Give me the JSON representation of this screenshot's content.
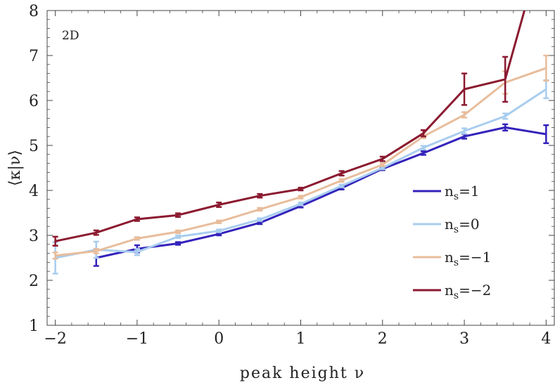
{
  "chart_data": {
    "type": "line",
    "title": "",
    "annotation": "2D",
    "xlabel": "peak height ν",
    "ylabel": "⟨κ|ν⟩",
    "xlim": [
      -2.1,
      4.1
    ],
    "ylim": [
      1,
      8
    ],
    "xticks": [
      -2,
      -1,
      0,
      1,
      2,
      3,
      4
    ],
    "xtick_labels": [
      "−2",
      "−1",
      "0",
      "1",
      "2",
      "3",
      "4"
    ],
    "yticks": [
      1,
      2,
      3,
      4,
      5,
      6,
      7,
      8
    ],
    "ytick_labels": [
      "1",
      "2",
      "3",
      "4",
      "5",
      "6",
      "7",
      "8"
    ],
    "grid": false,
    "legend_position": "lower-right",
    "series": [
      {
        "name": "n_s=1",
        "legend_main": "n",
        "legend_sub": "s",
        "legend_rest": "=1",
        "color": "#3322bb",
        "x": [
          -1.5,
          -1.0,
          -0.5,
          0.0,
          0.5,
          1.0,
          1.5,
          2.0,
          2.5,
          3.0,
          3.5,
          4.0
        ],
        "y": [
          2.5,
          2.7,
          2.82,
          3.03,
          3.28,
          3.65,
          4.05,
          4.48,
          4.83,
          5.2,
          5.4,
          5.25
        ],
        "err": [
          0.18,
          0.08,
          0.03,
          0.03,
          0.03,
          0.03,
          0.03,
          0.03,
          0.04,
          0.05,
          0.07,
          0.2
        ]
      },
      {
        "name": "n_s=0",
        "legend_main": "n",
        "legend_sub": "s",
        "legend_rest": "=0",
        "color": "#a8cdee",
        "x": [
          -2.0,
          -1.5,
          -1.0,
          -0.5,
          0.0,
          0.5,
          1.0,
          1.5,
          2.0,
          2.5,
          3.0,
          3.5,
          4.0
        ],
        "y": [
          2.5,
          2.68,
          2.63,
          2.97,
          3.1,
          3.35,
          3.7,
          4.1,
          4.5,
          4.95,
          5.32,
          5.65,
          6.25
        ],
        "err": [
          0.35,
          0.18,
          0.07,
          0.03,
          0.03,
          0.03,
          0.03,
          0.03,
          0.03,
          0.04,
          0.06,
          0.06,
          0.2
        ]
      },
      {
        "name": "n_s=-1",
        "legend_main": "n",
        "legend_sub": "s",
        "legend_rest": "=−1",
        "color": "#e8bd9c",
        "x": [
          -2.0,
          -1.5,
          -1.0,
          -0.5,
          0.0,
          0.5,
          1.0,
          1.5,
          2.0,
          2.5,
          3.0,
          3.5,
          4.0
        ],
        "y": [
          2.55,
          2.65,
          2.93,
          3.08,
          3.3,
          3.58,
          3.85,
          4.22,
          4.57,
          5.2,
          5.68,
          6.4,
          6.72
        ],
        "err": [
          0.07,
          0.05,
          0.03,
          0.03,
          0.03,
          0.03,
          0.03,
          0.03,
          0.03,
          0.04,
          0.06,
          0.25,
          0.28
        ]
      },
      {
        "name": "n_s=-2",
        "legend_main": "n",
        "legend_sub": "s",
        "legend_rest": "=−2",
        "color": "#8b1a30",
        "x": [
          -2.0,
          -1.5,
          -1.0,
          -0.5,
          0.0,
          0.5,
          1.0,
          1.5,
          2.0,
          2.5,
          3.0,
          3.5,
          3.75
        ],
        "y": [
          2.87,
          3.06,
          3.36,
          3.45,
          3.68,
          3.88,
          4.03,
          4.38,
          4.7,
          5.27,
          6.25,
          6.47,
          8.1
        ],
        "err": [
          0.1,
          0.05,
          0.04,
          0.04,
          0.05,
          0.04,
          0.03,
          0.05,
          0.05,
          0.07,
          0.35,
          0.5,
          null
        ]
      }
    ]
  }
}
